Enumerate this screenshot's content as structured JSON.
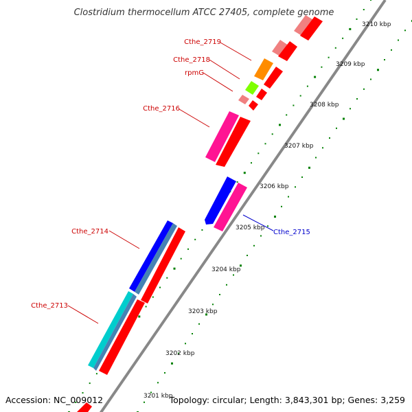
{
  "title": "Clostridium thermocellum ATCC 27405, complete genome",
  "footer": {
    "accession": "Accession: NC_009012",
    "topology": "Topology: circular; Length: 3,843,301 bp; Genes: 3,259"
  },
  "scale_labels": [
    "3210 kbp",
    "3209 kbp",
    "3208 kbp",
    "3207 kbp",
    "3206 kbp",
    "3205 kbp",
    "3204 kbp",
    "3203 kbp",
    "3202 kbp",
    "3201 kbp"
  ],
  "gene_labels": [
    {
      "text": "Cthe_2719",
      "color": "#cc0000"
    },
    {
      "text": "Cthe_2718",
      "color": "#cc0000"
    },
    {
      "text": "rpmG",
      "color": "#cc0000"
    },
    {
      "text": "Cthe_2716",
      "color": "#cc0000"
    },
    {
      "text": "Cthe_2715",
      "color": "#0000cc"
    },
    {
      "text": "Cthe_2714",
      "color": "#cc0000"
    },
    {
      "text": "Cthe_2713",
      "color": "#cc0000"
    }
  ],
  "colors": {
    "backbone": "#888888",
    "cds": "#ff0000",
    "cds_light": "#f08080",
    "magenta": "#ff1493",
    "blue": "#0000ff",
    "steel": "#4682b4",
    "cyan": "#00cdcd",
    "orange": "#ff8c00",
    "lime": "#7fff00",
    "tick": "#008000"
  }
}
